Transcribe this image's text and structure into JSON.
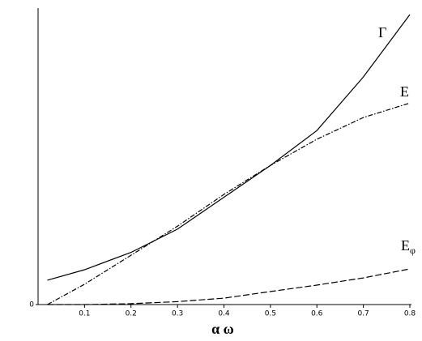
{
  "chart_data": {
    "type": "line",
    "x_label": "α ω",
    "x": [
      0.02,
      0.1,
      0.2,
      0.3,
      0.4,
      0.5,
      0.6,
      0.7,
      0.8
    ],
    "series": [
      {
        "name": "Γ",
        "color": "#000000",
        "dash": "solid",
        "values": [
          0.084,
          0.12,
          0.18,
          0.26,
          0.37,
          0.48,
          0.6,
          0.785,
          1.0
        ]
      },
      {
        "name": "E",
        "color": "#000000",
        "dash": "dashdot",
        "values": [
          0.0,
          0.07,
          0.17,
          0.27,
          0.38,
          0.48,
          0.57,
          0.645,
          0.695
        ]
      },
      {
        "name": "Eφ",
        "color": "#000000",
        "dash": "dashed",
        "values": [
          0.0,
          0.0,
          0.003,
          0.01,
          0.022,
          0.045,
          0.067,
          0.092,
          0.123
        ]
      }
    ],
    "xlim": [
      0,
      0.8
    ],
    "xticks": [
      0.1,
      0.2,
      0.3,
      0.4,
      0.5,
      0.6,
      0.7,
      0.8
    ],
    "ylim": [
      0,
      1
    ],
    "yticks": [
      0
    ],
    "grid": false
  }
}
